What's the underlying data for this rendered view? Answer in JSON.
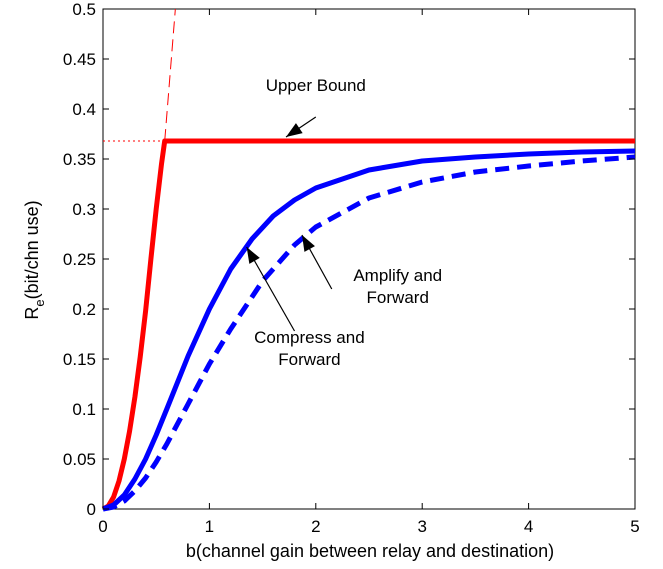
{
  "chart_data": {
    "type": "line",
    "xlabel": "b(channel gain between relay and destination)",
    "ylabel_main": "R",
    "ylabel_sub": "e",
    "ylabel_rest": "(bit/chn use)",
    "xlim": [
      0,
      5
    ],
    "ylim": [
      0,
      0.5
    ],
    "xticks": [
      0,
      1,
      2,
      3,
      4,
      5
    ],
    "xtick_labels": [
      "0",
      "1",
      "2",
      "3",
      "4",
      "5"
    ],
    "yticks": [
      0,
      0.05,
      0.1,
      0.15,
      0.2,
      0.25,
      0.3,
      0.35,
      0.4,
      0.45,
      0.5
    ],
    "ytick_labels": [
      "0",
      "0.05",
      "0.1",
      "0.15",
      "0.2",
      "0.25",
      "0.3",
      "0.35",
      "0.4",
      "0.45",
      "0.5"
    ],
    "grid": false,
    "series": [
      {
        "name": "Upper Bound",
        "color": "#ff0000",
        "style": "solid",
        "x": [
          0,
          0.05,
          0.1,
          0.15,
          0.2,
          0.25,
          0.3,
          0.35,
          0.4,
          0.45,
          0.5,
          0.55,
          0.58,
          1,
          2,
          3,
          4,
          5
        ],
        "y": [
          0,
          0.003,
          0.012,
          0.028,
          0.05,
          0.078,
          0.112,
          0.152,
          0.198,
          0.25,
          0.3,
          0.345,
          0.368,
          0.368,
          0.368,
          0.368,
          0.368,
          0.368
        ]
      },
      {
        "name": "Compress and Forward",
        "color": "#0000ff",
        "style": "solid",
        "x": [
          0,
          0.1,
          0.2,
          0.3,
          0.4,
          0.5,
          0.6,
          0.8,
          1.0,
          1.2,
          1.4,
          1.6,
          1.8,
          2.0,
          2.5,
          3.0,
          3.5,
          4.0,
          4.5,
          5.0
        ],
        "y": [
          0,
          0.004,
          0.014,
          0.03,
          0.05,
          0.074,
          0.1,
          0.153,
          0.2,
          0.24,
          0.27,
          0.293,
          0.309,
          0.321,
          0.339,
          0.348,
          0.352,
          0.355,
          0.357,
          0.358
        ]
      },
      {
        "name": "Amplify and Forward",
        "color": "#0000ff",
        "style": "dashed",
        "x": [
          0,
          0.1,
          0.2,
          0.3,
          0.4,
          0.5,
          0.6,
          0.8,
          1.0,
          1.2,
          1.5,
          1.8,
          2.0,
          2.5,
          3.0,
          3.5,
          4.0,
          4.5,
          5.0
        ],
        "y": [
          0,
          0.002,
          0.008,
          0.018,
          0.031,
          0.047,
          0.065,
          0.105,
          0.145,
          0.18,
          0.228,
          0.264,
          0.282,
          0.311,
          0.327,
          0.337,
          0.343,
          0.348,
          0.352
        ]
      }
    ],
    "reference_lines": [
      {
        "color": "#ff0000",
        "style": "dashed",
        "x": [
          0.58,
          0.68
        ],
        "y": [
          0.368,
          0.5
        ]
      },
      {
        "color": "#ff0000",
        "style": "dotted",
        "x": [
          0,
          0.58
        ],
        "y": [
          0.368,
          0.368
        ]
      }
    ],
    "annotations": [
      {
        "text_lines": [
          "Upper Bound"
        ],
        "text_x": 2.0,
        "text_y": 0.418,
        "arrow_from": [
          2.0,
          0.392
        ],
        "arrow_to": [
          1.72,
          0.372
        ],
        "anchor": "middle"
      },
      {
        "text_lines": [
          "Amplify and",
          "Forward"
        ],
        "text_x": 2.77,
        "text_y": 0.228,
        "arrow_from": [
          2.15,
          0.22
        ],
        "arrow_to": [
          1.87,
          0.274
        ],
        "anchor": "middle"
      },
      {
        "text_lines": [
          "Compress and",
          "Forward"
        ],
        "text_x": 1.94,
        "text_y": 0.166,
        "arrow_from": [
          1.8,
          0.178
        ],
        "arrow_to": [
          1.35,
          0.262
        ],
        "anchor": "middle"
      }
    ]
  }
}
